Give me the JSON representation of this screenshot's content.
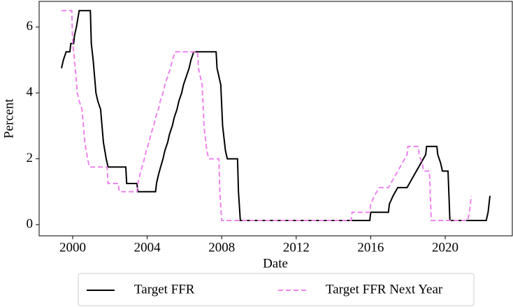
{
  "chart_data": {
    "type": "line",
    "x_label": "Date",
    "y_label": "Percent",
    "xlim": [
      1998.2,
      2023.6
    ],
    "xticks": [
      2000,
      2004,
      2008,
      2012,
      2016,
      2020
    ],
    "ylim": [
      -0.34,
      6.78
    ],
    "yticks": [
      0,
      2,
      4,
      6
    ],
    "grid": false,
    "legend": "bottom",
    "series": [
      {
        "name": "Target FFR",
        "color": "#000000",
        "dash": "solid",
        "x": [
          1999.4,
          1999.5,
          1999.65,
          1999.85,
          1999.9,
          2000.05,
          2000.1,
          2000.2,
          2000.35,
          2000.95,
          2001.0,
          2001.1,
          2001.25,
          2001.35,
          2001.5,
          2001.65,
          2001.8,
          2001.9,
          2002.85,
          2002.9,
          2003.45,
          2003.5,
          2004.45,
          2004.5,
          2004.6,
          2004.72,
          2004.85,
          2004.95,
          2005.1,
          2005.2,
          2005.35,
          2005.45,
          2005.6,
          2005.7,
          2005.85,
          2005.95,
          2006.1,
          2006.25,
          2006.35,
          2006.5,
          2007.7,
          2007.75,
          2007.85,
          2007.95,
          2008.05,
          2008.2,
          2008.3,
          2008.85,
          2008.9,
          2009.0,
          2015.95,
          2016.0,
          2016.95,
          2017.0,
          2017.2,
          2017.45,
          2017.95,
          2018.2,
          2018.45,
          2018.7,
          2018.95,
          2019.0,
          2019.55,
          2019.6,
          2019.75,
          2019.85,
          2020.15,
          2020.25,
          2022.2,
          2022.3,
          2022.4
        ],
        "values": [
          4.75,
          5.0,
          5.25,
          5.25,
          5.5,
          5.5,
          5.75,
          6.0,
          6.5,
          6.5,
          5.5,
          5.0,
          4.0,
          3.75,
          3.5,
          2.5,
          2.0,
          1.75,
          1.75,
          1.25,
          1.25,
          1.0,
          1.0,
          1.25,
          1.5,
          1.75,
          2.0,
          2.25,
          2.5,
          2.75,
          3.0,
          3.25,
          3.5,
          3.75,
          4.0,
          4.25,
          4.5,
          4.75,
          5.0,
          5.25,
          5.25,
          4.75,
          4.5,
          4.25,
          3.0,
          2.25,
          2.0,
          2.0,
          1.0,
          0.125,
          0.125,
          0.375,
          0.375,
          0.625,
          0.875,
          1.125,
          1.125,
          1.375,
          1.625,
          1.875,
          2.125,
          2.375,
          2.375,
          2.125,
          1.875,
          1.625,
          1.625,
          0.125,
          0.125,
          0.375,
          0.875
        ]
      },
      {
        "name": "Target FFR Next Year",
        "color": "#ee82ee",
        "dash": "dashed",
        "x": [
          1999.4,
          1999.95,
          2000.0,
          2000.1,
          2000.25,
          2000.35,
          2000.5,
          2000.65,
          2000.8,
          2000.9,
          2001.85,
          2001.9,
          2002.45,
          2002.5,
          2003.45,
          2003.5,
          2003.6,
          2003.72,
          2003.85,
          2003.95,
          2004.1,
          2004.2,
          2004.35,
          2004.45,
          2004.6,
          2004.7,
          2004.85,
          2004.95,
          2005.1,
          2005.25,
          2005.35,
          2005.5,
          2006.7,
          2006.75,
          2006.85,
          2006.95,
          2007.05,
          2007.2,
          2007.3,
          2007.85,
          2007.9,
          2008.0,
          2014.95,
          2015.0,
          2015.95,
          2016.0,
          2016.2,
          2016.45,
          2016.95,
          2017.2,
          2017.45,
          2017.7,
          2017.95,
          2018.0,
          2018.55,
          2018.6,
          2018.75,
          2018.85,
          2019.15,
          2019.25,
          2021.2,
          2021.3,
          2021.4
        ],
        "values": [
          6.5,
          6.5,
          5.5,
          5.0,
          4.0,
          3.75,
          3.5,
          2.5,
          2.0,
          1.75,
          1.75,
          1.25,
          1.25,
          1.0,
          1.0,
          1.25,
          1.5,
          1.75,
          2.0,
          2.25,
          2.5,
          2.75,
          3.0,
          3.25,
          3.5,
          3.75,
          4.0,
          4.25,
          4.5,
          4.75,
          5.0,
          5.25,
          5.25,
          4.75,
          4.5,
          4.25,
          3.0,
          2.25,
          2.0,
          2.0,
          1.0,
          0.125,
          0.125,
          0.375,
          0.375,
          0.625,
          0.875,
          1.125,
          1.125,
          1.375,
          1.625,
          1.875,
          2.125,
          2.375,
          2.375,
          2.125,
          1.875,
          1.625,
          1.625,
          0.125,
          0.125,
          0.375,
          0.875
        ]
      }
    ]
  }
}
